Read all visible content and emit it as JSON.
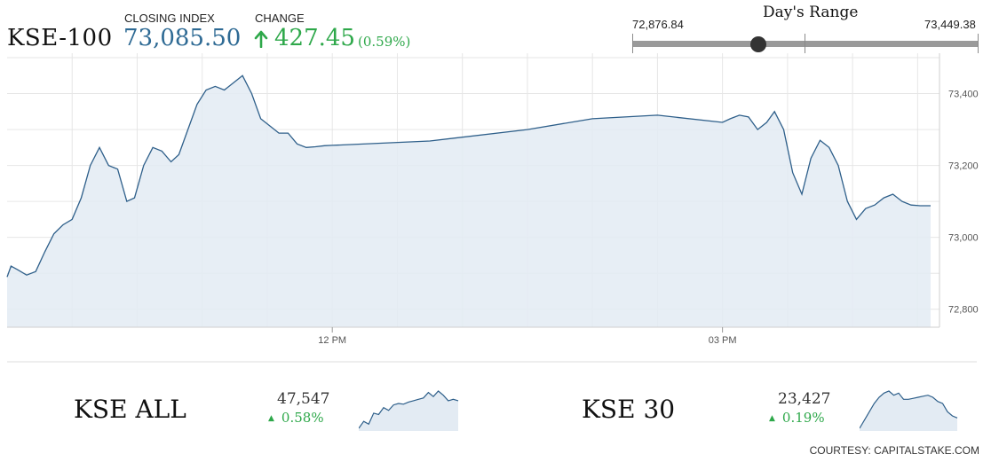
{
  "header": {
    "index_name": "KSE-100",
    "closing_label": "CLOSING INDEX",
    "closing_value": "73,085.50",
    "change_label": "CHANGE",
    "change_value": "427.45",
    "change_pct": "(0.59%)",
    "change_direction": "up",
    "accent_color": "#2e6a94",
    "positive_color": "#2ea84a"
  },
  "days_range": {
    "title": "Day's Range",
    "low": "72,876.84",
    "high": "73,449.38",
    "current": 73085.5
  },
  "chart_data": {
    "type": "area",
    "ylim": [
      72750,
      73500
    ],
    "yticks": [
      72800,
      73000,
      73200,
      73400
    ],
    "ytick_labels": [
      "72,800",
      "73,000",
      "73,200",
      "73,400"
    ],
    "xlim": [
      9.5,
      16.6
    ],
    "xticks": [
      12,
      15
    ],
    "xtick_labels": [
      "12 PM",
      "03 PM"
    ],
    "grid": true,
    "line_color": "#2e5f8a",
    "fill_color": "#e3ebf3",
    "x": [
      9.5,
      9.53,
      9.58,
      9.65,
      9.72,
      9.79,
      9.86,
      9.93,
      10.0,
      10.07,
      10.14,
      10.21,
      10.28,
      10.35,
      10.42,
      10.48,
      10.55,
      10.62,
      10.69,
      10.76,
      10.82,
      10.89,
      10.96,
      11.03,
      11.1,
      11.17,
      11.24,
      11.31,
      11.38,
      11.45,
      11.52,
      11.59,
      11.66,
      11.73,
      11.8,
      11.87,
      11.94,
      12.0,
      12.75,
      13.5,
      14.0,
      14.5,
      15.0,
      15.06,
      15.13,
      15.2,
      15.27,
      15.34,
      15.4,
      15.47,
      15.54,
      15.61,
      15.68,
      15.75,
      15.82,
      15.89,
      15.96,
      16.03,
      16.1,
      16.17,
      16.24,
      16.31,
      16.38,
      16.45,
      16.52,
      16.6
    ],
    "y": [
      72890,
      72920,
      72910,
      72895,
      72905,
      72960,
      73010,
      73035,
      73050,
      73110,
      73200,
      73250,
      73200,
      73190,
      73100,
      73110,
      73200,
      73250,
      73240,
      73210,
      73230,
      73300,
      73370,
      73410,
      73420,
      73410,
      73430,
      73450,
      73400,
      73330,
      73310,
      73290,
      73290,
      73260,
      73250,
      73252,
      73255,
      73256,
      73268,
      73300,
      73330,
      73340,
      73320,
      73330,
      73340,
      73335,
      73300,
      73320,
      73350,
      73300,
      73180,
      73120,
      73220,
      73270,
      73250,
      73200,
      73100,
      73050,
      73080,
      73090,
      73110,
      73120,
      73100,
      73090,
      73088,
      73088
    ]
  },
  "mini_charts": [
    {
      "name": "KSE ALL",
      "value": "47,547",
      "change": "0.58%",
      "direction": "up",
      "spark": [
        46900,
        47000,
        46960,
        47120,
        47100,
        47200,
        47160,
        47240,
        47260,
        47250,
        47280,
        47300,
        47320,
        47340,
        47420,
        47360,
        47440,
        47380,
        47300,
        47320,
        47300
      ]
    },
    {
      "name": "KSE 30",
      "value": "23,427",
      "change": "0.19%",
      "direction": "up",
      "spark": [
        23300,
        23340,
        23380,
        23420,
        23450,
        23470,
        23480,
        23460,
        23470,
        23440,
        23440,
        23445,
        23450,
        23455,
        23460,
        23450,
        23430,
        23420,
        23380,
        23360,
        23350
      ]
    }
  ],
  "footer": {
    "courtesy": "COURTESY: CAPITALSTAKE.COM"
  }
}
